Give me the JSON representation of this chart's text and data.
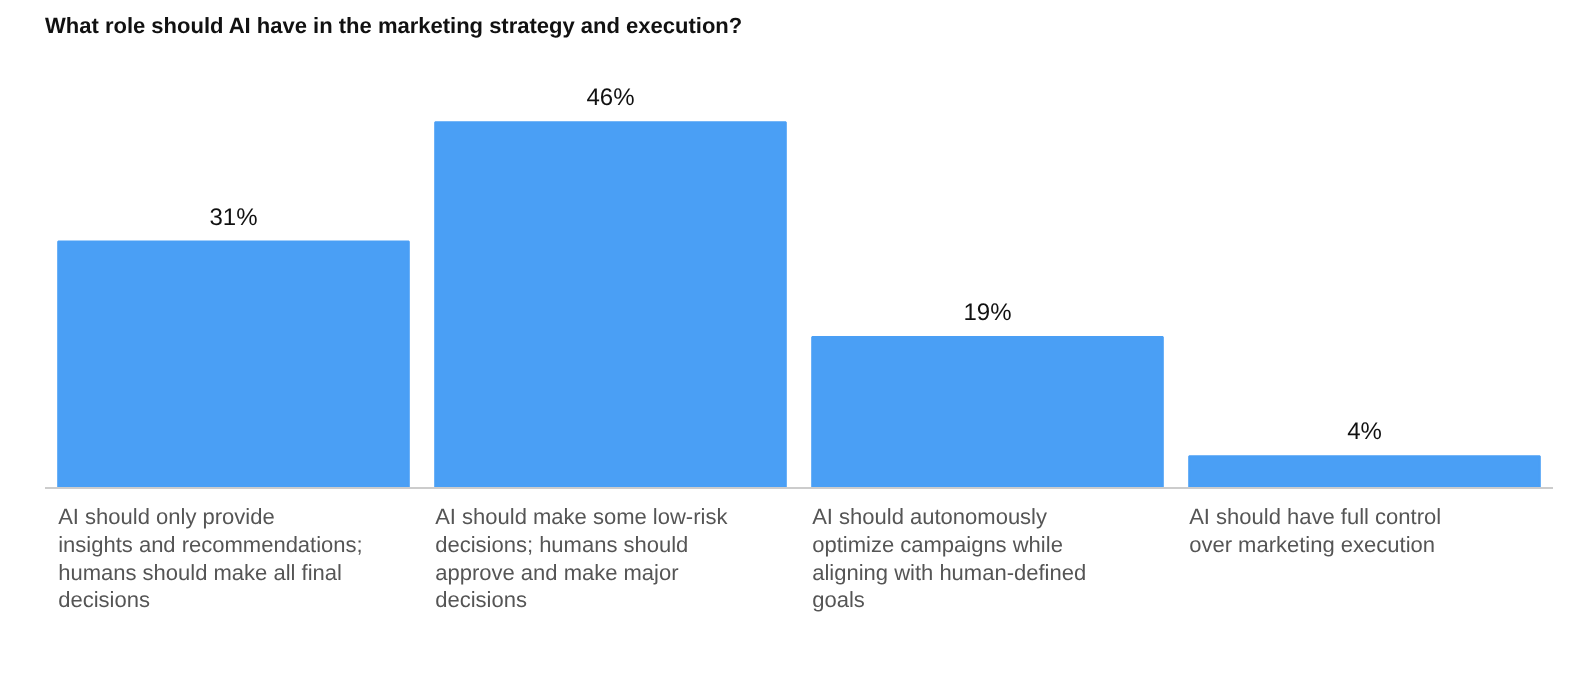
{
  "chart_data": {
    "type": "bar",
    "title": "What role should AI have in the marketing strategy and execution?",
    "categories": [
      "AI should only provide insights and recommendations; humans should make all final decisions",
      "AI should make some low-risk decisions; humans should approve and make major decisions",
      "AI should autonomously optimize campaigns while aligning with human-defined goals",
      "AI should have full control over marketing execution"
    ],
    "values": [
      31,
      46,
      19,
      4
    ],
    "value_labels": [
      "31%",
      "46%",
      "19%",
      "4%"
    ],
    "color": "#4a9ff5"
  }
}
